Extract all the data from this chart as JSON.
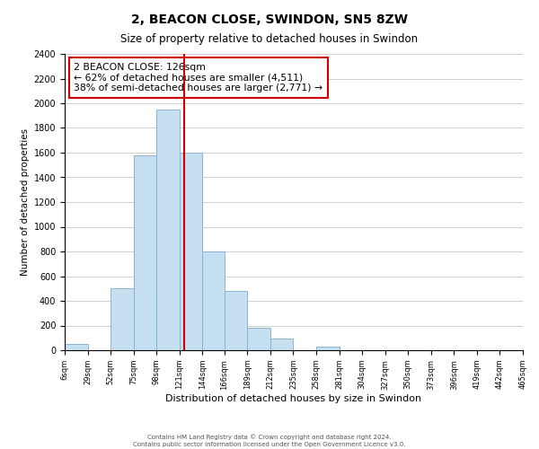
{
  "title": "2, BEACON CLOSE, SWINDON, SN5 8ZW",
  "subtitle": "Size of property relative to detached houses in Swindon",
  "xlabel": "Distribution of detached houses by size in Swindon",
  "ylabel": "Number of detached properties",
  "bar_edges": [
    6,
    29,
    52,
    75,
    98,
    121,
    144,
    166,
    189,
    212,
    235,
    258,
    281,
    304,
    327,
    350,
    373,
    396,
    419,
    442,
    465
  ],
  "bar_heights": [
    50,
    0,
    500,
    1580,
    1950,
    1600,
    800,
    480,
    185,
    95,
    0,
    30,
    0,
    0,
    0,
    0,
    0,
    0,
    0,
    0
  ],
  "bar_color": "#c6dff0",
  "bar_edgecolor": "#8ab4d4",
  "vline_x": 126,
  "vline_color": "#cc0000",
  "annotation_line1": "2 BEACON CLOSE: 126sqm",
  "annotation_line2": "← 62% of detached houses are smaller (4,511)",
  "annotation_line3": "38% of semi-detached houses are larger (2,771) →",
  "annotation_box_color": "#ffffff",
  "annotation_box_edgecolor": "#cc0000",
  "ylim": [
    0,
    2400
  ],
  "yticks": [
    0,
    200,
    400,
    600,
    800,
    1000,
    1200,
    1400,
    1600,
    1800,
    2000,
    2200,
    2400
  ],
  "xtick_labels": [
    "6sqm",
    "29sqm",
    "52sqm",
    "75sqm",
    "98sqm",
    "121sqm",
    "144sqm",
    "166sqm",
    "189sqm",
    "212sqm",
    "235sqm",
    "258sqm",
    "281sqm",
    "304sqm",
    "327sqm",
    "350sqm",
    "373sqm",
    "396sqm",
    "419sqm",
    "442sqm",
    "465sqm"
  ],
  "footer_line1": "Contains HM Land Registry data © Crown copyright and database right 2024.",
  "footer_line2": "Contains public sector information licensed under the Open Government Licence v3.0.",
  "background_color": "#ffffff",
  "grid_color": "#d0d0d0"
}
